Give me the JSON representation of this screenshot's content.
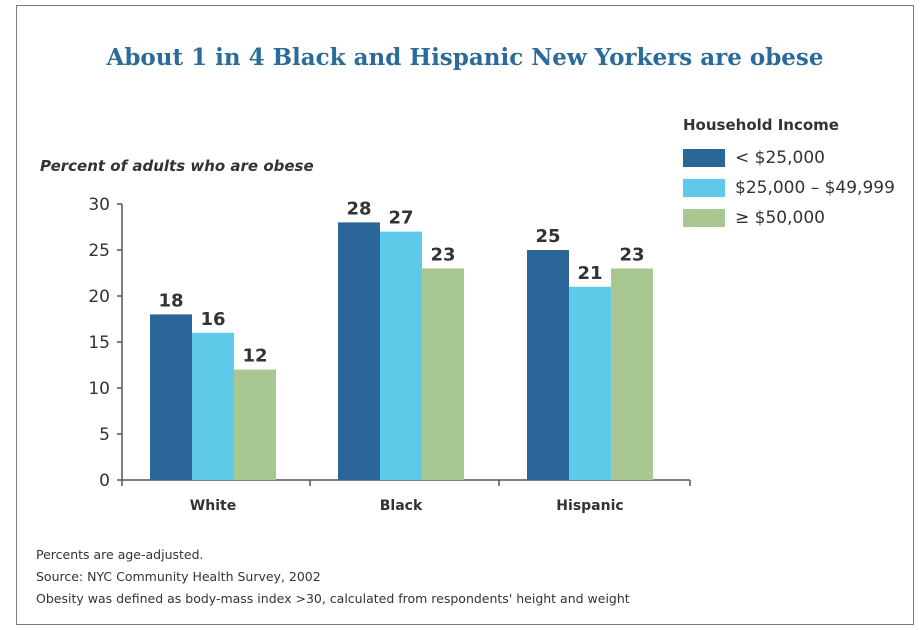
{
  "title": "About 1 in 4 Black and Hispanic New Yorkers are obese",
  "colors": {
    "title": "#2b6b9a",
    "low": "#2a6698",
    "mid": "#5ec9e8",
    "high": "#a9c790"
  },
  "chart_data": {
    "type": "bar",
    "title": "About 1 in 4 Black and Hispanic New Yorkers are obese",
    "ylabel": "Percent of adults who are obese",
    "xlabel": "",
    "categories": [
      "White",
      "Black",
      "Hispanic"
    ],
    "ylim": [
      0,
      30
    ],
    "yticks": [
      "0",
      "5",
      "10",
      "15",
      "20",
      "25",
      "30"
    ],
    "legend_title": "Household Income",
    "legend_position": "top-right",
    "grid": false,
    "series": [
      {
        "name": "< $25,000",
        "color": "#2a6698",
        "values": [
          18,
          28,
          25
        ],
        "labels": [
          "18",
          "28",
          "25"
        ]
      },
      {
        "name": "$25,000 – $49,999",
        "color": "#5ec9e8",
        "values": [
          16,
          27,
          21
        ],
        "labels": [
          "16",
          "27",
          "21"
        ]
      },
      {
        "name": "≥ $50,000",
        "color": "#a9c790",
        "values": [
          12,
          23,
          23
        ],
        "labels": [
          "12",
          "23",
          "23"
        ]
      }
    ]
  },
  "notes": [
    "Percents are age-adjusted.",
    "Source: NYC Community Health Survey, 2002",
    "Obesity was defined as body-mass index >30, calculated from respondents' height and weight"
  ]
}
